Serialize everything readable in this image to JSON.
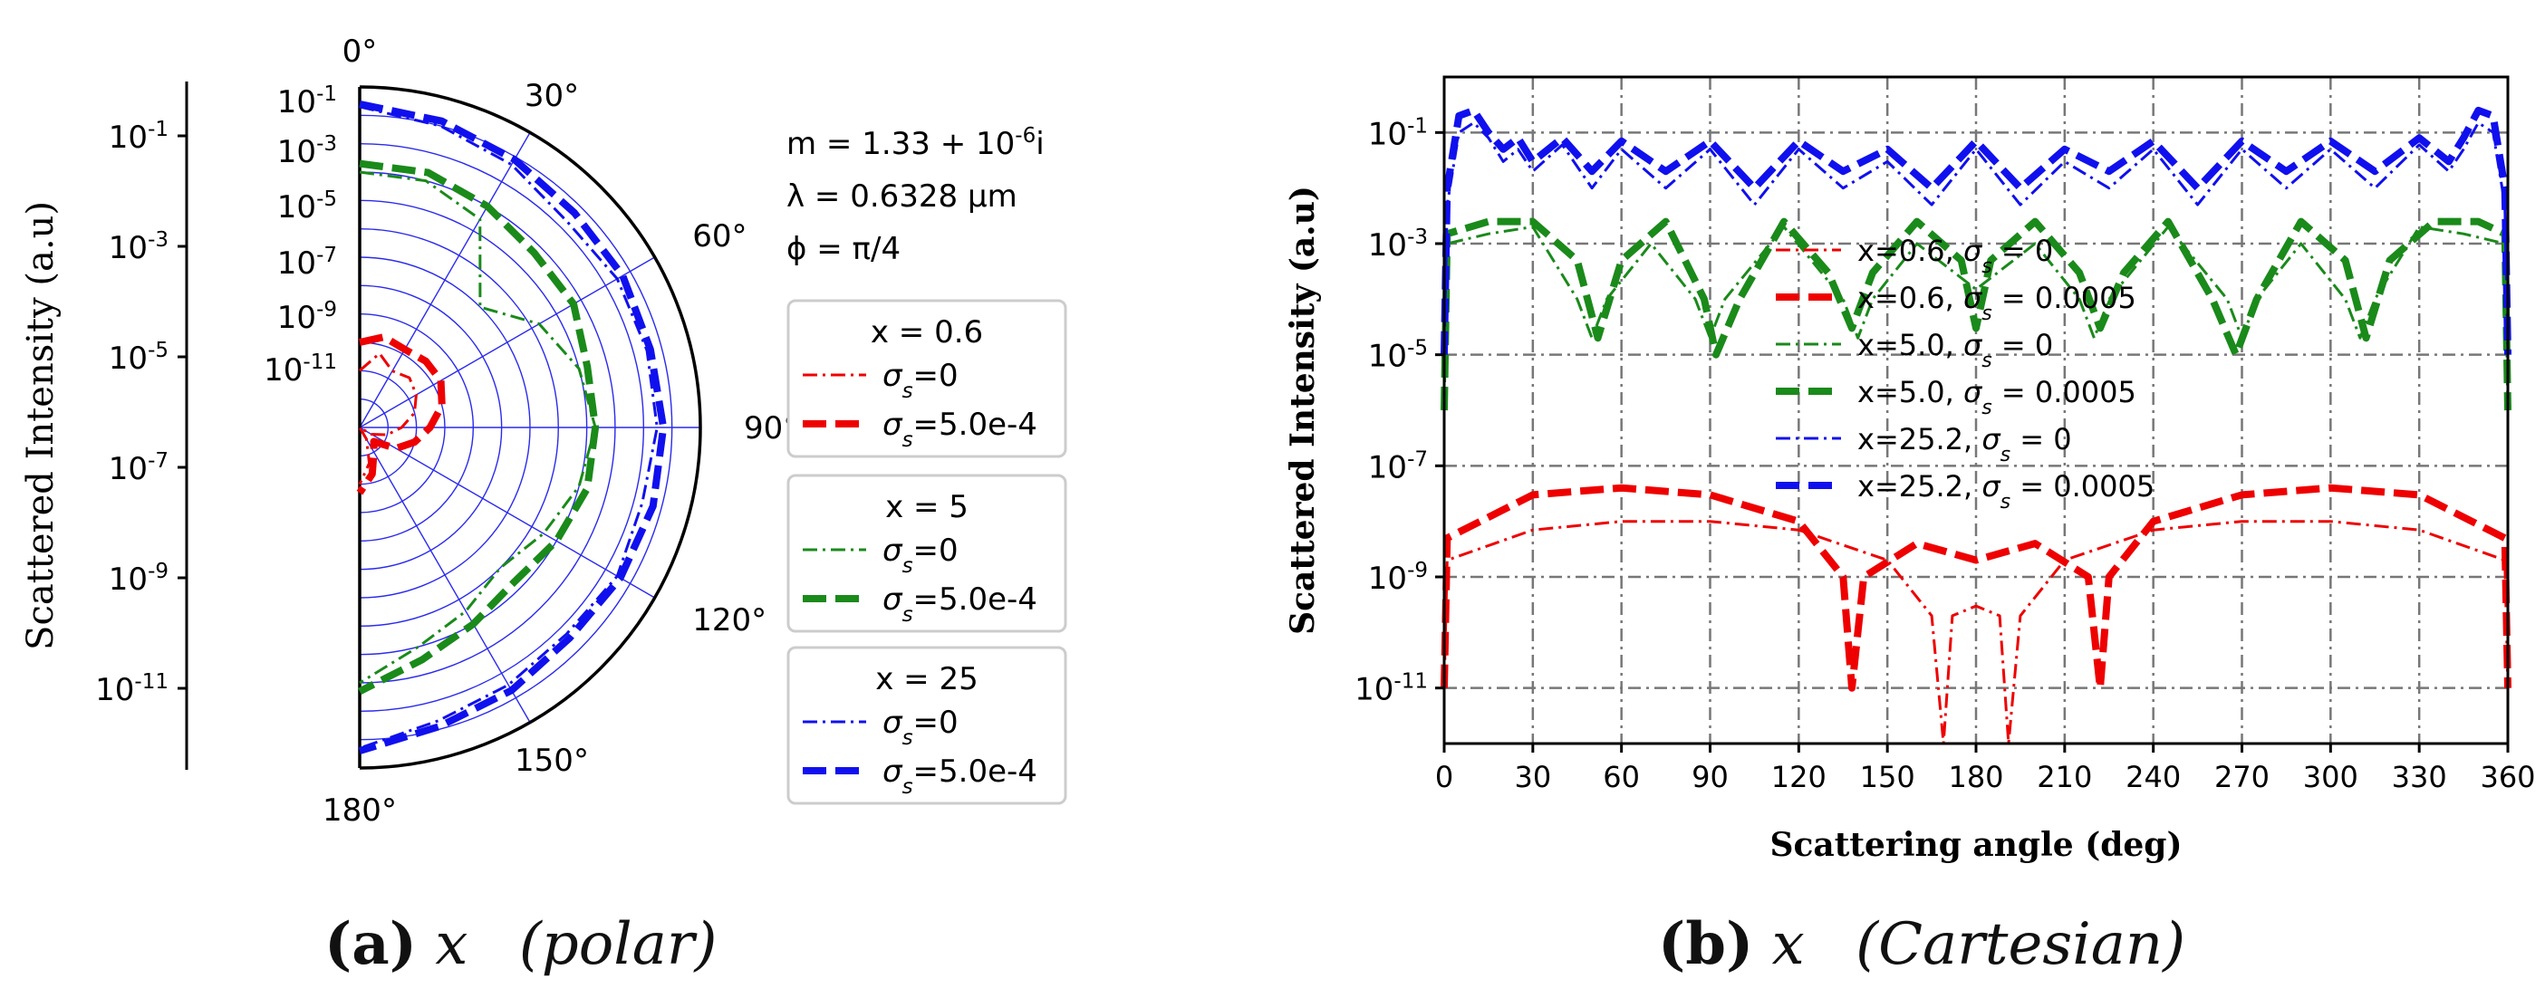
{
  "chart_data": [
    {
      "type": "line",
      "subtype": "polar-half",
      "caption": {
        "label": "(a)",
        "variable": "x",
        "mode": "(polar)"
      },
      "ylabel": "Scattered Intensity (a.u)",
      "yaxis": {
        "scale": "log",
        "ylim": [
          1e-12,
          1
        ],
        "ticks": [
          "10^{-1}",
          "10^{-3}",
          "10^{-5}",
          "10^{-7}",
          "10^{-9}",
          "10^{-11}"
        ]
      },
      "angle_ticks": [
        "0°",
        "30°",
        "60°",
        "90°",
        "120°",
        "150°",
        "180°"
      ],
      "radial_ticks": [
        "10^{-1}",
        "10^{-3}",
        "10^{-5}",
        "10^{-7}",
        "10^{-9}",
        "10^{-11}"
      ],
      "parameters": [
        "m = 1.33 + 10^{-6}i",
        "λ = 0.6328 μm",
        "ϕ = π/4"
      ],
      "legend_groups": [
        {
          "title": "x = 0.6",
          "color": "#ee0000",
          "entries": [
            {
              "label": "σs=0",
              "style": "dashdot"
            },
            {
              "label": "σs=5.0e-4",
              "style": "dashed"
            }
          ]
        },
        {
          "title": "x = 5",
          "color": "#1a8a1a",
          "entries": [
            {
              "label": "σs=0",
              "style": "dashdot"
            },
            {
              "label": "σs=5.0e-4",
              "style": "dashed"
            }
          ]
        },
        {
          "title": "x = 25",
          "color": "#1010ee",
          "entries": [
            {
              "label": "σs=0",
              "style": "dashdot"
            },
            {
              "label": "σs=5.0e-4",
              "style": "dashed"
            }
          ]
        }
      ],
      "series": [
        {
          "group": 0,
          "style": "dashdot",
          "angles": [
            0,
            15,
            30,
            45,
            60,
            75,
            90,
            105,
            120,
            135,
            150,
            165,
            180
          ],
          "values": [
            1e-10,
            5e-10,
            2e-10,
            3e-10,
            2e-10,
            1e-10,
            3e-11,
            1e-11,
            3e-12,
            1e-12,
            3e-12,
            2e-11,
            1e-10
          ]
        },
        {
          "group": 0,
          "style": "dashed",
          "angles": [
            0,
            15,
            30,
            45,
            60,
            75,
            90,
            105,
            120,
            135,
            150,
            165,
            180
          ],
          "values": [
            1e-09,
            2e-09,
            1.5e-09,
            2e-09,
            2e-09,
            1e-09,
            3e-10,
            1e-10,
            3e-11,
            5e-12,
            1e-11,
            5e-11,
            2e-10
          ]
        },
        {
          "group": 1,
          "style": "dashdot",
          "angles": [
            0,
            15,
            30,
            45,
            60,
            75,
            90,
            105,
            120,
            135,
            150,
            165,
            180
          ],
          "values": [
            0.001,
            0.001,
            0.0003,
            1e-06,
            2e-05,
            0.0001,
            0.0002,
            0.0001,
            3e-05,
            1e-05,
            3e-05,
            0.0001,
            0.001
          ]
        },
        {
          "group": 1,
          "style": "dashed",
          "angles": [
            0,
            15,
            30,
            45,
            60,
            75,
            90,
            105,
            120,
            135,
            150,
            165,
            180
          ],
          "values": [
            0.002,
            0.002,
            0.001,
            0.0005,
            0.0005,
            0.0002,
            0.0002,
            0.0002,
            0.0001,
            5e-05,
            0.0001,
            0.0003,
            0.002
          ]
        },
        {
          "group": 2,
          "style": "dashdot",
          "angles": [
            0,
            15,
            30,
            45,
            60,
            75,
            90,
            105,
            120,
            135,
            150,
            165,
            180
          ],
          "values": [
            0.2,
            0.1,
            0.05,
            0.02,
            0.03,
            0.03,
            0.03,
            0.02,
            0.03,
            0.02,
            0.03,
            0.05,
            0.2
          ]
        },
        {
          "group": 2,
          "style": "dashed",
          "angles": [
            0,
            15,
            30,
            45,
            60,
            75,
            90,
            105,
            120,
            135,
            150,
            165,
            180
          ],
          "values": [
            0.25,
            0.15,
            0.08,
            0.05,
            0.05,
            0.04,
            0.05,
            0.05,
            0.04,
            0.03,
            0.05,
            0.08,
            0.25
          ]
        }
      ]
    },
    {
      "type": "line",
      "caption": {
        "label": "(b)",
        "variable": "x",
        "mode": "(Cartesian)"
      },
      "xlabel": "Scattering angle (deg)",
      "ylabel": "Scattered Intensity (a.u)",
      "xlim": [
        0,
        360
      ],
      "ylim": [
        1e-12,
        1
      ],
      "yscale": "log",
      "grid": true,
      "x_ticks": [
        "0",
        "30",
        "60",
        "90",
        "120",
        "150",
        "180",
        "210",
        "240",
        "270",
        "300",
        "330",
        "360"
      ],
      "y_ticks": [
        "10^{-1}",
        "10^{-3}",
        "10^{-5}",
        "10^{-7}",
        "10^{-9}",
        "10^{-11}"
      ],
      "legend": [
        {
          "label": "x=0.6, σs = 0",
          "color": "#ee0000",
          "style": "dashdot"
        },
        {
          "label": "x=0.6, σs = 0.0005",
          "color": "#ee0000",
          "style": "dashed"
        },
        {
          "label": "x=5.0, σs = 0",
          "color": "#1a8a1a",
          "style": "dashdot"
        },
        {
          "label": "x=5.0, σs = 0.0005",
          "color": "#1a8a1a",
          "style": "dashed"
        },
        {
          "label": "x=25.2, σs = 0",
          "color": "#1010ee",
          "style": "dashdot"
        },
        {
          "label": "x=25.2, σs = 0.0005",
          "color": "#1010ee",
          "style": "dashed"
        }
      ],
      "series": [
        {
          "name": "x=0.6, σs = 0",
          "x": [
            0,
            1,
            30,
            60,
            90,
            120,
            150,
            165,
            169,
            172,
            180,
            188,
            191,
            195,
            210,
            240,
            270,
            300,
            330,
            359,
            360
          ],
          "y": [
            1e-11,
            2e-09,
            7e-09,
            1e-08,
            1e-08,
            7e-09,
            2e-09,
            2e-10,
            1e-12,
            2e-10,
            3e-10,
            2e-10,
            1e-12,
            2e-10,
            2e-09,
            7e-09,
            1e-08,
            1e-08,
            7e-09,
            2e-09,
            1e-11
          ]
        },
        {
          "name": "x=0.6, σs = 0.0005",
          "x": [
            0,
            1,
            30,
            60,
            90,
            120,
            135,
            138,
            142,
            160,
            180,
            200,
            218,
            222,
            225,
            240,
            270,
            300,
            330,
            359,
            360
          ],
          "y": [
            1e-11,
            5e-09,
            3e-08,
            4e-08,
            3e-08,
            1e-08,
            1e-09,
            1e-11,
            1e-09,
            4e-09,
            2e-09,
            4e-09,
            1e-09,
            1e-11,
            1e-09,
            1e-08,
            3e-08,
            4e-08,
            3e-08,
            5e-09,
            1e-11
          ]
        },
        {
          "name": "x=5.0, σs = 0",
          "x": [
            0,
            1,
            15,
            30,
            45,
            50,
            55,
            70,
            85,
            90,
            95,
            115,
            135,
            140,
            145,
            160,
            180,
            200,
            215,
            220,
            225,
            245,
            265,
            270,
            275,
            290,
            305,
            310,
            315,
            330,
            345,
            359,
            360
          ],
          "y": [
            1e-06,
            0.001,
            0.0015,
            0.002,
            0.0001,
            2e-05,
            0.0001,
            0.001,
            0.0001,
            2e-05,
            0.0001,
            0.002,
            0.0001,
            2e-05,
            0.0001,
            0.001,
            0.00015,
            0.001,
            0.0001,
            2e-05,
            0.0001,
            0.002,
            0.0001,
            2e-05,
            0.0001,
            0.001,
            0.0001,
            2e-05,
            0.0001,
            0.002,
            0.0015,
            0.001,
            1e-06
          ]
        },
        {
          "name": "x=5.0, σs = 0.0005",
          "x": [
            0,
            1,
            15,
            30,
            45,
            52,
            60,
            75,
            88,
            92,
            100,
            115,
            130,
            138,
            145,
            160,
            175,
            180,
            185,
            200,
            215,
            222,
            230,
            245,
            260,
            268,
            275,
            290,
            305,
            312,
            320,
            335,
            350,
            359,
            360
          ],
          "y": [
            1e-06,
            0.0015,
            0.0025,
            0.0025,
            0.0005,
            2e-05,
            0.0005,
            0.0025,
            0.0001,
            1e-05,
            0.0001,
            0.0025,
            0.0003,
            3e-05,
            0.0003,
            0.0025,
            0.0005,
            3e-05,
            0.0005,
            0.0025,
            0.0003,
            3e-05,
            0.0003,
            0.0025,
            0.0001,
            1e-05,
            0.0001,
            0.0025,
            0.0005,
            2e-05,
            0.0005,
            0.0025,
            0.0025,
            0.0015,
            1e-06
          ]
        },
        {
          "name": "x=25.2, σs = 0",
          "x": [
            0,
            1,
            5,
            10,
            15,
            20,
            25,
            30,
            40,
            50,
            60,
            75,
            90,
            105,
            120,
            135,
            150,
            165,
            180,
            195,
            210,
            225,
            240,
            255,
            270,
            285,
            300,
            315,
            330,
            340,
            345,
            350,
            355,
            359,
            360
          ],
          "y": [
            1e-05,
            0.005,
            0.1,
            0.15,
            0.08,
            0.03,
            0.05,
            0.02,
            0.06,
            0.01,
            0.05,
            0.01,
            0.05,
            0.005,
            0.05,
            0.01,
            0.03,
            0.005,
            0.05,
            0.005,
            0.03,
            0.01,
            0.05,
            0.005,
            0.05,
            0.01,
            0.05,
            0.01,
            0.06,
            0.02,
            0.05,
            0.15,
            0.1,
            0.005,
            1e-05
          ]
        },
        {
          "name": "x=25.2, σs = 0.0005",
          "x": [
            0,
            1,
            5,
            10,
            15,
            20,
            25,
            30,
            40,
            50,
            60,
            75,
            90,
            105,
            120,
            135,
            150,
            165,
            180,
            195,
            210,
            225,
            240,
            255,
            270,
            285,
            300,
            315,
            330,
            340,
            345,
            350,
            355,
            359,
            360
          ],
          "y": [
            1e-05,
            0.01,
            0.2,
            0.25,
            0.1,
            0.05,
            0.08,
            0.03,
            0.08,
            0.02,
            0.07,
            0.02,
            0.07,
            0.01,
            0.07,
            0.02,
            0.05,
            0.01,
            0.07,
            0.01,
            0.05,
            0.02,
            0.07,
            0.01,
            0.07,
            0.02,
            0.07,
            0.02,
            0.08,
            0.03,
            0.08,
            0.25,
            0.2,
            0.01,
            1e-05
          ]
        }
      ]
    }
  ]
}
